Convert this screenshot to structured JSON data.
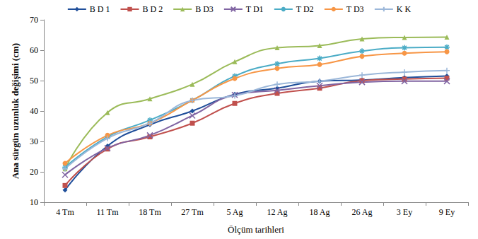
{
  "chart_data": {
    "type": "line",
    "y_label": "Ana sürgün uzunluk değişimi (cm)",
    "x_label": "Ölçüm tarihleri",
    "categories": [
      "4 Tm",
      "11 Tm",
      "18 Tm",
      "27 Tm",
      "5 Ag",
      "12 Ag",
      "18 Ag",
      "26 Ag",
      "3 Ey",
      "9 Ey"
    ],
    "series": [
      {
        "name": "B D 1",
        "color": "#1f4e9a",
        "marker": "diamond",
        "values": [
          14,
          28.5,
          35.5,
          40,
          45.5,
          47.5,
          49.8,
          50.2,
          51,
          51.5
        ]
      },
      {
        "name": "B D 2",
        "color": "#c0504d",
        "marker": "square",
        "values": [
          15.5,
          27.5,
          31.5,
          36,
          42.5,
          45.8,
          47.5,
          50,
          50.5,
          50.8
        ]
      },
      {
        "name": "B D3",
        "color": "#9bbb59",
        "marker": "triangle",
        "values": [
          21,
          39.5,
          44,
          48.8,
          56.2,
          60.8,
          61.5,
          63.7,
          64.2,
          64.3
        ]
      },
      {
        "name": "T D1",
        "color": "#8064a2",
        "marker": "x",
        "values": [
          19,
          27.8,
          32,
          38.5,
          45.3,
          46.8,
          48.3,
          49.5,
          49.8,
          49.8
        ]
      },
      {
        "name": "T D2",
        "color": "#4bacc6",
        "marker": "star",
        "values": [
          21.5,
          31.5,
          37,
          43.5,
          51.5,
          55.5,
          57.3,
          59.7,
          60.8,
          61
        ]
      },
      {
        "name": "T D3",
        "color": "#f79646",
        "marker": "circle",
        "values": [
          22.8,
          32,
          36,
          43.5,
          50.7,
          54,
          55.3,
          58,
          59,
          59.5
        ]
      },
      {
        "name": "K K",
        "color": "#9bb7d9",
        "marker": "plus",
        "values": [
          21,
          31,
          36,
          43.5,
          45,
          48.8,
          49.8,
          51.8,
          52.8,
          53.3
        ]
      }
    ],
    "ylim": [
      10,
      70
    ],
    "yticks": [
      10,
      20,
      30,
      40,
      50,
      60,
      70
    ],
    "grid": false,
    "legend": "top"
  }
}
